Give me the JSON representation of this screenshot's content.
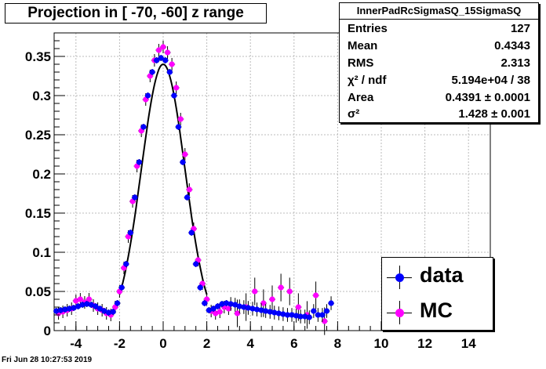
{
  "title": "Projection in [ -70, -60] z range",
  "stats": {
    "name": "InnerPadRcSigmaSQ_15SigmaSQ",
    "rows": [
      {
        "label": "Entries",
        "value": "127"
      },
      {
        "label": "Mean",
        "value": "0.4343"
      },
      {
        "label": "RMS",
        "value": "2.313"
      },
      {
        "label": "χ² / ndf",
        "value": "5.194e+04 / 38"
      },
      {
        "label": "Area",
        "value": "0.4391 ± 0.0001"
      },
      {
        "label": "σ²",
        "value": "1.428 ± 0.001"
      }
    ]
  },
  "legend": [
    {
      "label": "data",
      "color": "#0000ff"
    },
    {
      "label": "MC",
      "color": "#ff00ff"
    }
  ],
  "datestamp": "Fri Jun 28 10:27:53 2019",
  "chart_data": {
    "type": "scatter",
    "title": "Projection in [ -70, -60] z range",
    "xlim": [
      -5,
      15
    ],
    "ylim": [
      0,
      0.38
    ],
    "xticks": [
      -4,
      -2,
      0,
      2,
      4,
      6,
      8,
      10,
      12,
      14
    ],
    "yticks": [
      0.05,
      0.1,
      0.15,
      0.2,
      0.25,
      0.3,
      0.35
    ],
    "grid": true,
    "legend_position": "bottom-right",
    "series": [
      {
        "name": "data",
        "color": "#0000ff",
        "x": [
          -4.9,
          -4.7,
          -4.5,
          -4.3,
          -4.1,
          -3.9,
          -3.7,
          -3.5,
          -3.3,
          -3.1,
          -2.9,
          -2.7,
          -2.5,
          -2.3,
          -2.1,
          -1.9,
          -1.7,
          -1.5,
          -1.3,
          -1.1,
          -0.9,
          -0.7,
          -0.5,
          -0.3,
          -0.1,
          0.1,
          0.3,
          0.5,
          0.7,
          0.9,
          1.1,
          1.3,
          1.5,
          1.7,
          1.9,
          2.1,
          2.3,
          2.5,
          2.7,
          2.9,
          3.1,
          3.3,
          3.5,
          3.7,
          3.9,
          4.1,
          4.3,
          4.5,
          4.7,
          4.9,
          5.1,
          5.3,
          5.5,
          5.7,
          5.9,
          6.1,
          6.3,
          6.5,
          6.7,
          6.9,
          7.1,
          7.3,
          7.5,
          7.7
        ],
        "y": [
          0.025,
          0.026,
          0.027,
          0.028,
          0.029,
          0.031,
          0.033,
          0.034,
          0.033,
          0.031,
          0.028,
          0.025,
          0.023,
          0.024,
          0.035,
          0.055,
          0.085,
          0.125,
          0.17,
          0.215,
          0.26,
          0.3,
          0.33,
          0.345,
          0.348,
          0.345,
          0.33,
          0.3,
          0.26,
          0.215,
          0.17,
          0.125,
          0.085,
          0.055,
          0.035,
          0.026,
          0.028,
          0.031,
          0.034,
          0.035,
          0.034,
          0.033,
          0.031,
          0.03,
          0.029,
          0.028,
          0.027,
          0.026,
          0.025,
          0.024,
          0.023,
          0.022,
          0.021,
          0.02,
          0.02,
          0.019,
          0.018,
          0.018,
          0.017,
          0.025,
          0.02,
          0.02,
          0.025,
          0.035
        ]
      },
      {
        "name": "MC",
        "color": "#ff00ff",
        "x": [
          -4.8,
          -4.6,
          -4.4,
          -4.2,
          -4.0,
          -3.8,
          -3.6,
          -3.4,
          -3.2,
          -3.0,
          -2.8,
          -2.6,
          -2.4,
          -2.2,
          -2.0,
          -1.8,
          -1.6,
          -1.4,
          -1.2,
          -1.0,
          -0.8,
          -0.6,
          -0.4,
          -0.2,
          0.0,
          0.2,
          0.4,
          0.6,
          0.8,
          1.0,
          1.2,
          1.4,
          1.6,
          1.8,
          2.0,
          2.2,
          2.4,
          2.6,
          2.8,
          3.0,
          3.4,
          3.8,
          4.2,
          4.6,
          5.0,
          5.4,
          5.8,
          6.2,
          6.6,
          7.0,
          7.4
        ],
        "y": [
          0.022,
          0.024,
          0.026,
          0.028,
          0.038,
          0.04,
          0.036,
          0.04,
          0.032,
          0.028,
          0.026,
          0.022,
          0.02,
          0.03,
          0.05,
          0.08,
          0.12,
          0.165,
          0.21,
          0.255,
          0.295,
          0.325,
          0.345,
          0.358,
          0.362,
          0.355,
          0.34,
          0.31,
          0.27,
          0.225,
          0.18,
          0.13,
          0.09,
          0.06,
          0.04,
          0.025,
          0.022,
          0.024,
          0.03,
          0.028,
          0.022,
          0.03,
          0.05,
          0.035,
          0.04,
          0.055,
          0.05,
          0.03,
          0.02,
          0.045,
          0.012
        ]
      },
      {
        "name": "",
        "type": "line",
        "color": "#000000",
        "peak_y": 0.34,
        "mean": 0.0,
        "sigma_sq": 1.0,
        "x_range": [
          -2.0,
          2.0
        ]
      }
    ]
  }
}
